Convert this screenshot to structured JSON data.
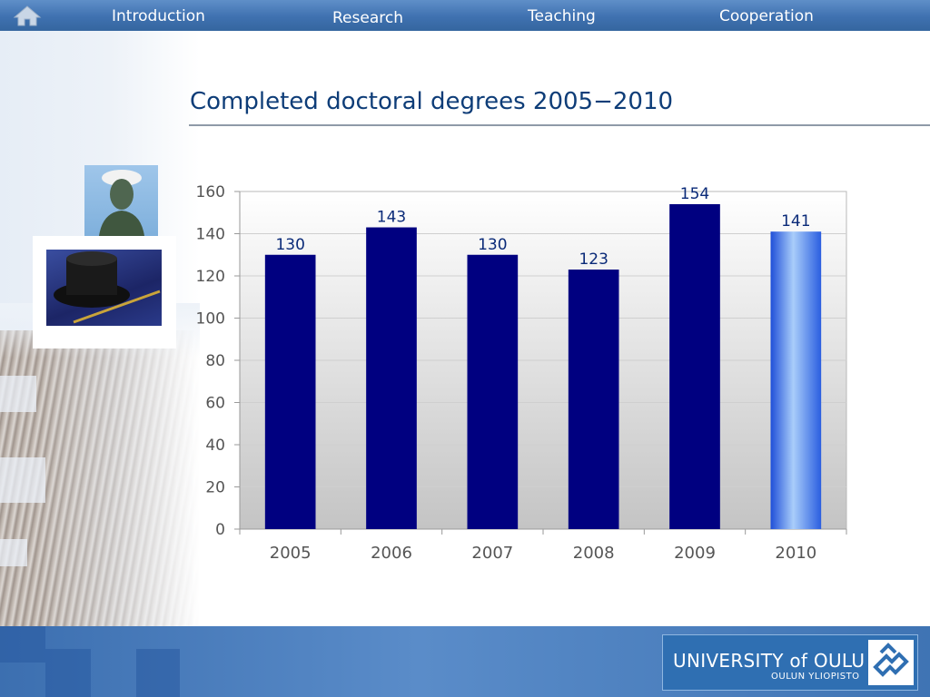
{
  "nav": {
    "home_icon": "home-icon",
    "items": [
      "Introduction",
      "Research",
      "Teaching",
      "Cooperation"
    ]
  },
  "page_title": "Completed doctoral degrees 2005−2010",
  "logo": {
    "main": "UNIVERSITY of OULU",
    "sub": "OULUN YLIOPISTO"
  },
  "colors": {
    "bar": "#000080",
    "bar_highlight": "#5f9ef2",
    "title": "#0e3d78",
    "data_label": "#0a2a78"
  },
  "chart_data": {
    "type": "bar",
    "title": "",
    "xlabel": "",
    "ylabel": "",
    "categories": [
      "2005",
      "2006",
      "2007",
      "2008",
      "2009",
      "2010"
    ],
    "values": [
      130,
      143,
      130,
      123,
      154,
      141
    ],
    "data_labels": [
      "130",
      "143",
      "130",
      "123",
      "154",
      "141"
    ],
    "highlighted_category": "2010",
    "ylim": [
      0,
      160
    ],
    "yticks": [
      0,
      20,
      40,
      60,
      80,
      100,
      120,
      140,
      160
    ],
    "grid": true,
    "legend": "none"
  }
}
